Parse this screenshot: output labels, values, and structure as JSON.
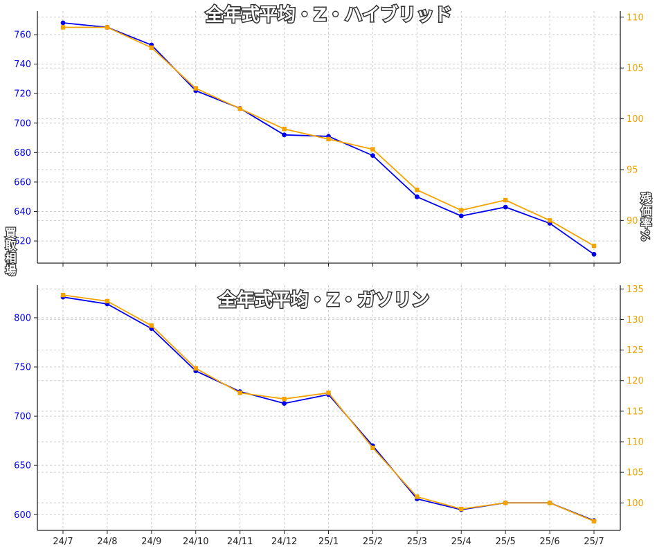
{
  "colors": {
    "left_axis": "#0000ee",
    "right_axis": "#f0a000",
    "price_line": "#0000ee",
    "rate_line": "#f5a300",
    "text": "#222222"
  },
  "shared": {
    "ylabel_left": "買取相場",
    "ylabel_right": "残価率%"
  },
  "chart_data": [
    {
      "type": "line",
      "title": "全年式平均・Z・ハイブリッド",
      "categories": [
        "24/7",
        "24/8",
        "24/9",
        "24/10",
        "24/11",
        "24/12",
        "25/1",
        "25/2",
        "25/3",
        "25/4",
        "25/5",
        "25/6",
        "25/7"
      ],
      "ylim_left": [
        605,
        776
      ],
      "yticks_left": [
        620,
        640,
        660,
        680,
        700,
        720,
        740,
        760
      ],
      "ylim_right": [
        85.8,
        110.6
      ],
      "yticks_right": [
        90,
        95,
        100,
        105,
        110
      ],
      "series": [
        {
          "name": "買取相場",
          "axis": "left",
          "marker": "circle",
          "values": [
            768,
            765,
            753,
            722,
            710,
            692,
            691,
            678,
            650,
            637,
            643,
            632,
            611
          ]
        },
        {
          "name": "残価率",
          "axis": "right",
          "marker": "square",
          "values": [
            109,
            109,
            107,
            103,
            101,
            99,
            98,
            97,
            93,
            91,
            92,
            90,
            87.5
          ]
        }
      ]
    },
    {
      "type": "line",
      "title": "全年式平均・Z・ガソリン",
      "categories": [
        "24/7",
        "24/8",
        "24/9",
        "24/10",
        "24/11",
        "24/12",
        "25/1",
        "25/2",
        "25/3",
        "25/4",
        "25/5",
        "25/6",
        "25/7"
      ],
      "ylim_left": [
        584,
        833
      ],
      "yticks_left": [
        600,
        650,
        700,
        750,
        800
      ],
      "ylim_right": [
        95.5,
        135.6
      ],
      "yticks_right": [
        100,
        105,
        110,
        115,
        120,
        125,
        130,
        135
      ],
      "series": [
        {
          "name": "買取相場",
          "axis": "left",
          "marker": "circle",
          "values": [
            821,
            814,
            789,
            746,
            725,
            713,
            722,
            670,
            616,
            605,
            612,
            612,
            594
          ]
        },
        {
          "name": "残価率",
          "axis": "right",
          "marker": "square",
          "values": [
            134,
            133,
            129,
            122,
            118,
            117,
            118,
            109,
            101,
            99,
            100,
            100,
            97
          ]
        }
      ]
    }
  ]
}
